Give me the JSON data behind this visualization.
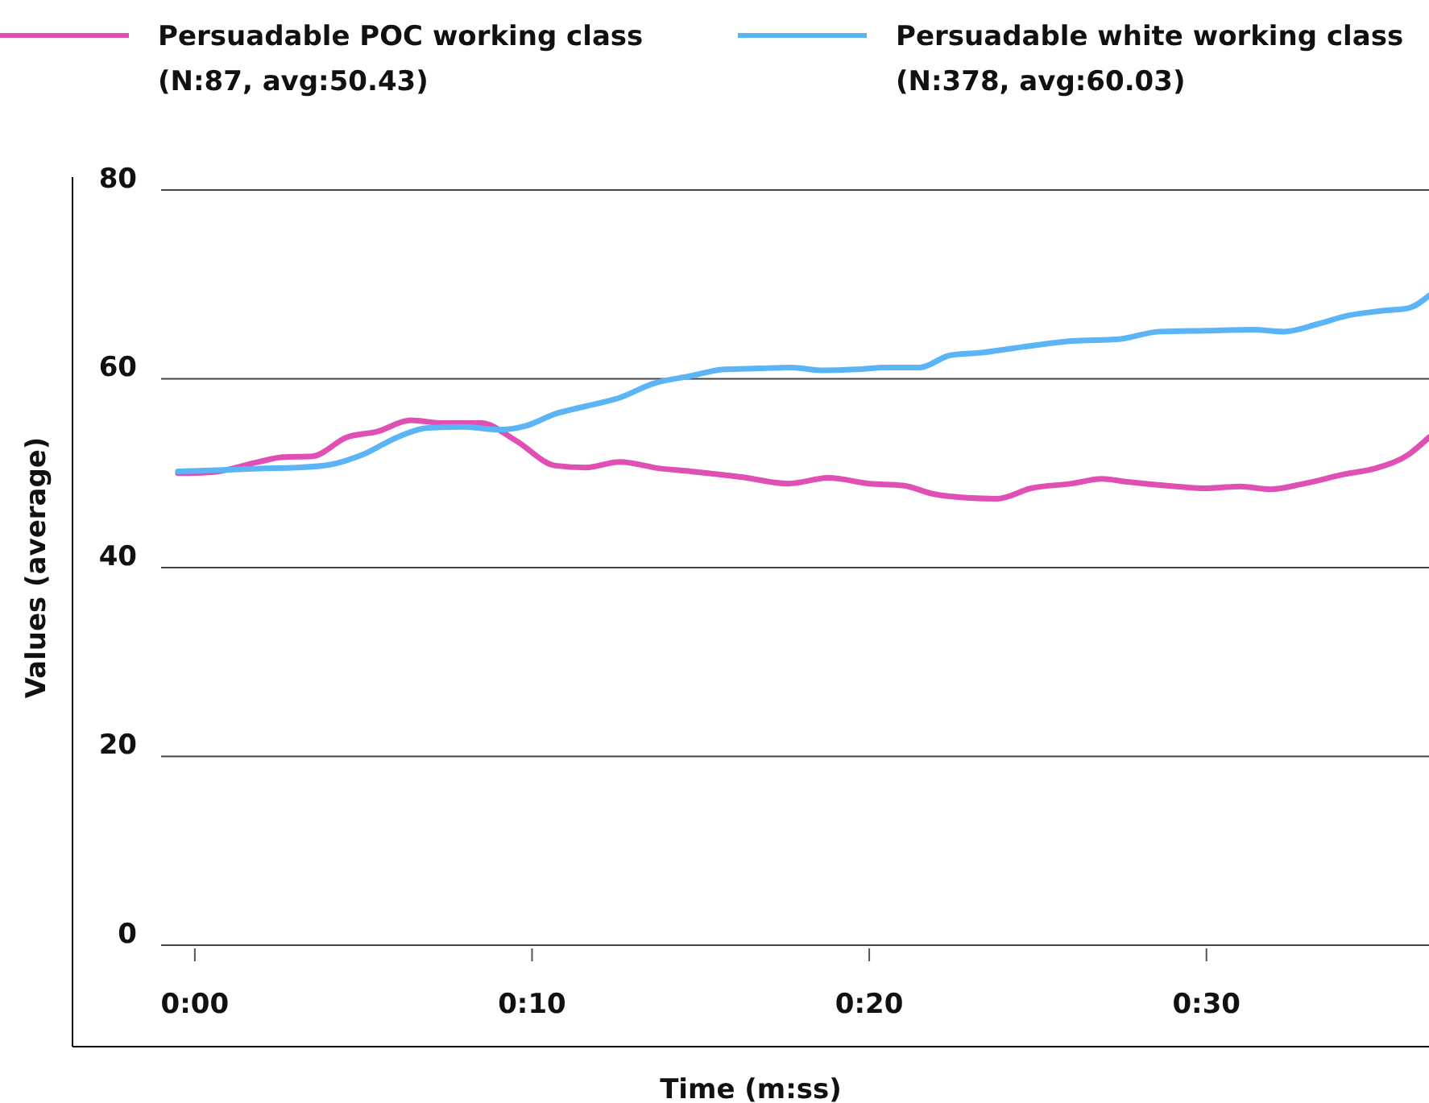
{
  "chart_data": {
    "type": "line",
    "xlabel": "Time (m:ss)",
    "ylabel": "Values (average)",
    "xlim": [
      -1,
      36.6
    ],
    "xticks": [
      {
        "value": 0,
        "label": "0:00"
      },
      {
        "value": 10,
        "label": "0:10"
      },
      {
        "value": 20,
        "label": "0:20"
      },
      {
        "value": 30,
        "label": "0:30"
      }
    ],
    "ylim": [
      0,
      80
    ],
    "yticks": [
      0,
      20,
      40,
      60,
      80
    ],
    "grid": "y",
    "legend": "top left",
    "marker": "none",
    "line_style": "solid",
    "series": [
      {
        "name": "Persuadable POC working class\n(N:87, avg:50.43)",
        "color": "#e04fb3",
        "x": [
          -0.5,
          0.5,
          1.9,
          2.6,
          3.5,
          4.5,
          5.4,
          6.4,
          7.4,
          8.5,
          9.5,
          10.7,
          11.6,
          12.6,
          13.8,
          14.7,
          16.2,
          17.6,
          18.8,
          20,
          21,
          21.9,
          22.9,
          23.8,
          24.8,
          26,
          26.9,
          27.6,
          29.1,
          30,
          31,
          31.9,
          32.9,
          34.1,
          35,
          36,
          36.6
        ],
        "values": [
          50.0,
          50.1,
          51.2,
          51.7,
          51.8,
          53.8,
          54.4,
          55.6,
          55.3,
          55.3,
          53.5,
          50.8,
          50.6,
          51.2,
          50.5,
          50.2,
          49.6,
          48.9,
          49.5,
          48.9,
          48.7,
          47.8,
          47.4,
          47.3,
          48.4,
          48.9,
          49.4,
          49.1,
          48.6,
          48.4,
          48.6,
          48.3,
          48.9,
          49.9,
          50.5,
          52.0,
          53.8
        ]
      },
      {
        "name": "Persuadable white working class\n(N:378, avg:60.03)",
        "color": "#5ab4f5",
        "x": [
          -0.5,
          0.5,
          1.9,
          3.0,
          4.0,
          5.0,
          6.0,
          6.9,
          8.0,
          9.0,
          9.8,
          10.7,
          11.6,
          12.6,
          13.6,
          14.7,
          15.7,
          16.7,
          17.7,
          18.6,
          19.6,
          20.5,
          21.5,
          22.4,
          23.4,
          24.8,
          26,
          27.4,
          28.6,
          30,
          31.4,
          32.3,
          33.3,
          34.2,
          35.2,
          36,
          36.6
        ],
        "values": [
          50.2,
          50.3,
          50.5,
          50.6,
          50.9,
          52.0,
          53.8,
          54.8,
          54.9,
          54.6,
          55.0,
          56.3,
          57.1,
          58.0,
          59.5,
          60.3,
          61.0,
          61.1,
          61.2,
          60.9,
          61.0,
          61.2,
          61.2,
          62.5,
          62.8,
          63.5,
          64.0,
          64.2,
          65.0,
          65.1,
          65.2,
          65.0,
          65.8,
          66.7,
          67.2,
          67.5,
          68.8
        ]
      }
    ]
  }
}
